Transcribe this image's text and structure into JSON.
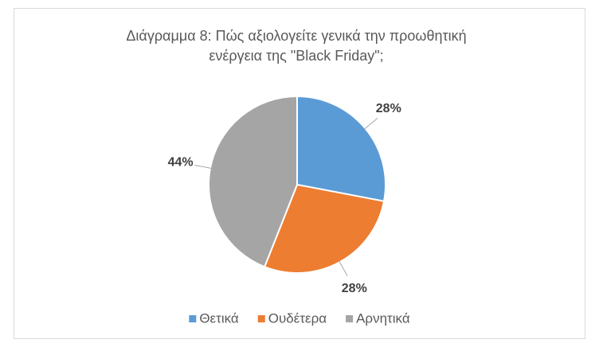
{
  "chart_data": {
    "type": "pie",
    "title": "Διάγραμμα 8: Πώς αξιολογείτε γενικά την προωθητική ενέργεια της \"Black Friday\";",
    "categories": [
      "Θετικά",
      "Ουδέτερα",
      "Αρνητικά"
    ],
    "values": [
      28,
      28,
      44
    ],
    "value_labels": [
      "28%",
      "28%",
      "44%"
    ],
    "colors": [
      "#5b9bd5",
      "#ed7d31",
      "#a5a5a5"
    ],
    "legend": "bottom"
  }
}
